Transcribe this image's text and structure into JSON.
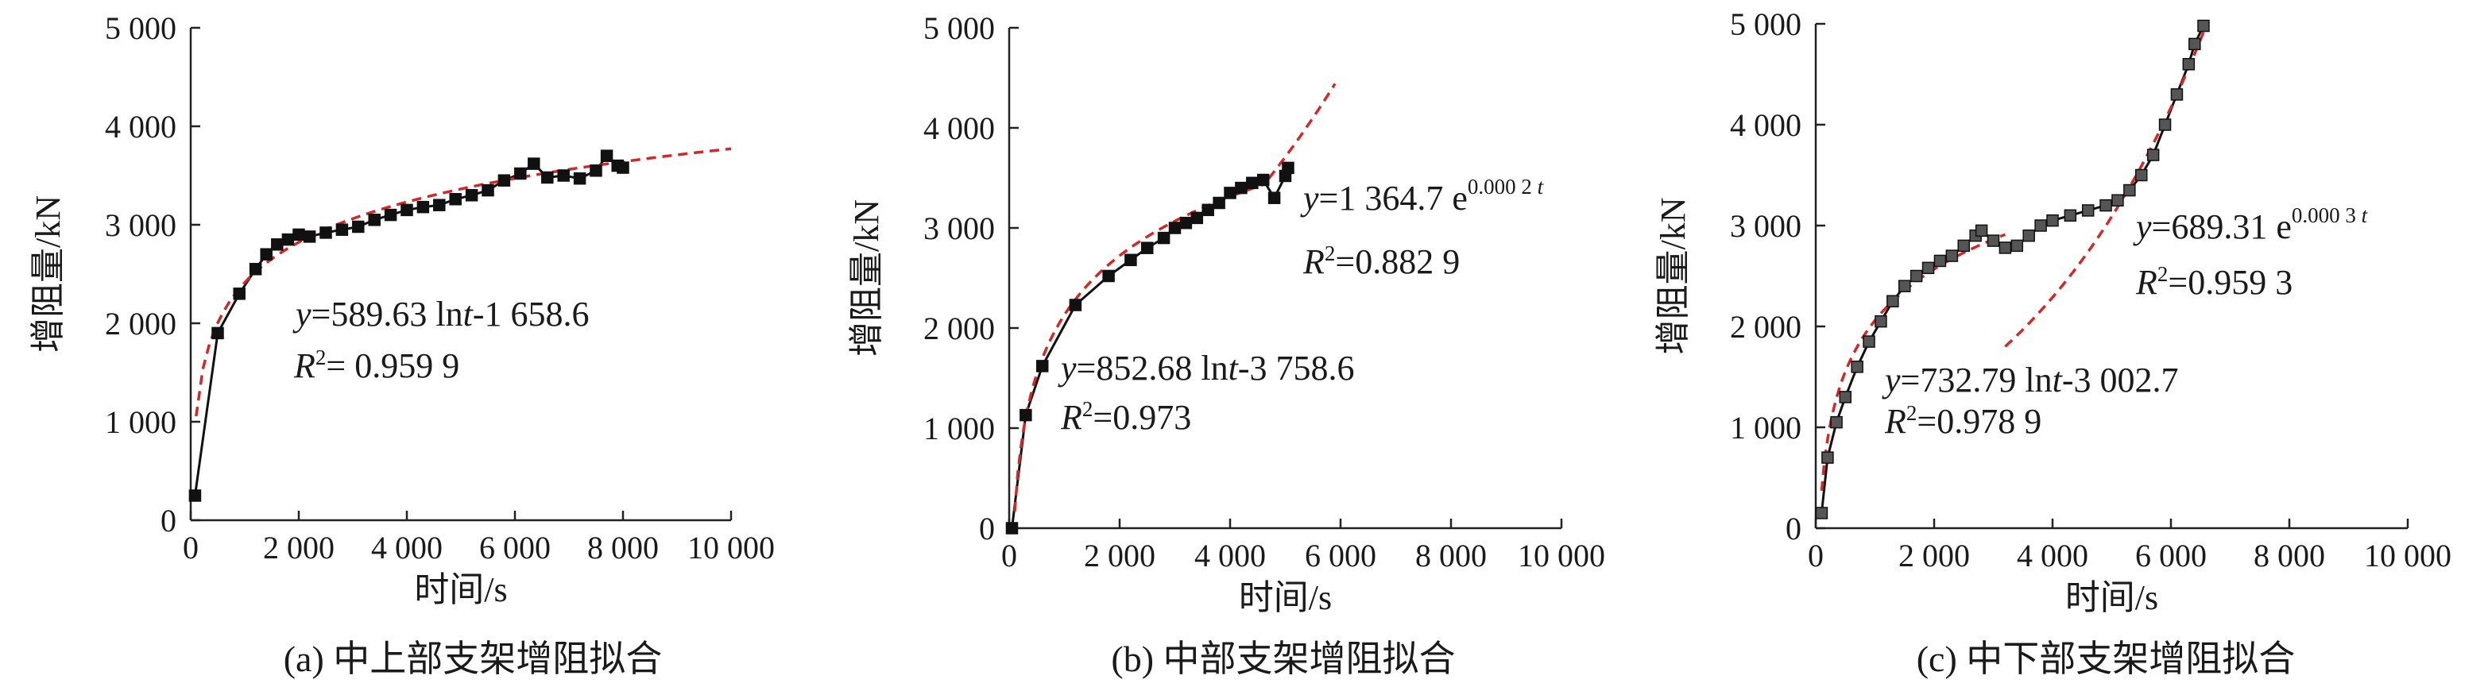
{
  "charts": [
    {
      "type": "scatter",
      "panel_caption": "(a) 中上部支架增阻拟合",
      "xlabel": "时间/s",
      "ylabel": "增阻量/kN",
      "xlim": [
        0,
        10000
      ],
      "ylim": [
        0,
        5000
      ],
      "x_ticks": [
        0,
        2000,
        4000,
        6000,
        8000,
        10000
      ],
      "x_tick_labels": [
        "0",
        "2 000",
        "4 000",
        "6 000",
        "8 000",
        "10 000"
      ],
      "y_ticks": [
        0,
        1000,
        2000,
        3000,
        4000,
        5000
      ],
      "y_tick_labels": [
        "0",
        "1 000",
        "2 000",
        "3 000",
        "4 000",
        "5 000"
      ],
      "fit": {
        "model": "log",
        "a": 589.63,
        "b": -1658.6,
        "x_range": [
          100,
          10000
        ]
      },
      "equation": {
        "y_label": "y",
        "body": "=589.63 ln",
        "var": "t",
        "tail": "-1 658.6",
        "r2_label": "R",
        "r2_value": "= 0.959 9"
      },
      "points": [
        [
          80,
          250
        ],
        [
          500,
          1900
        ],
        [
          900,
          2300
        ],
        [
          1200,
          2550
        ],
        [
          1400,
          2700
        ],
        [
          1600,
          2800
        ],
        [
          1800,
          2850
        ],
        [
          2000,
          2900
        ],
        [
          2200,
          2880
        ],
        [
          2500,
          2920
        ],
        [
          2800,
          2950
        ],
        [
          3100,
          2980
        ],
        [
          3400,
          3050
        ],
        [
          3700,
          3100
        ],
        [
          4000,
          3150
        ],
        [
          4300,
          3180
        ],
        [
          4600,
          3200
        ],
        [
          4900,
          3260
        ],
        [
          5200,
          3300
        ],
        [
          5500,
          3350
        ],
        [
          5800,
          3450
        ],
        [
          6100,
          3520
        ],
        [
          6350,
          3620
        ],
        [
          6600,
          3480
        ],
        [
          6900,
          3500
        ],
        [
          7200,
          3470
        ],
        [
          7500,
          3550
        ],
        [
          7700,
          3700
        ],
        [
          7900,
          3600
        ],
        [
          8000,
          3580
        ]
      ]
    },
    {
      "type": "scatter",
      "panel_caption": "(b) 中部支架增阻拟合",
      "xlabel": "时间/s",
      "ylabel": "增阻量/kN",
      "xlim": [
        0,
        10000
      ],
      "ylim": [
        0,
        5000
      ],
      "x_ticks": [
        0,
        2000,
        4000,
        6000,
        8000,
        10000
      ],
      "x_tick_labels": [
        "0",
        "2 000",
        "4 000",
        "6 000",
        "8 000",
        "10 000"
      ],
      "y_ticks": [
        0,
        1000,
        2000,
        3000,
        4000,
        5000
      ],
      "y_tick_labels": [
        "0",
        "1 000",
        "2 000",
        "3 000",
        "4 000",
        "5 000"
      ],
      "fits": [
        {
          "model": "log",
          "a": 852.68,
          "b": -3758.6,
          "x_range": [
            100,
            4700
          ]
        },
        {
          "model": "exp",
          "a": 1364.7,
          "b": 0.0002,
          "x_range": [
            4700,
            5900
          ]
        }
      ],
      "equation_log": {
        "y_label": "y",
        "body": "=852.68 ln",
        "var": "t",
        "tail": "-3 758.6",
        "r2_label": "R",
        "r2_value": "=0.973"
      },
      "equation_exp": {
        "y_label": "y",
        "body": "=1 364.7 e",
        "exponent": "0.000 2",
        "exp_var": "t",
        "r2_label": "R",
        "r2_value": "=0.882 9"
      },
      "points": [
        [
          50,
          0
        ],
        [
          300,
          1130
        ],
        [
          600,
          1620
        ],
        [
          1200,
          2230
        ],
        [
          1800,
          2520
        ],
        [
          2200,
          2680
        ],
        [
          2500,
          2800
        ],
        [
          2800,
          2900
        ],
        [
          3000,
          3000
        ],
        [
          3200,
          3050
        ],
        [
          3400,
          3100
        ],
        [
          3600,
          3180
        ],
        [
          3800,
          3250
        ],
        [
          4000,
          3350
        ],
        [
          4200,
          3400
        ],
        [
          4400,
          3450
        ],
        [
          4600,
          3480
        ],
        [
          4800,
          3300
        ],
        [
          5000,
          3520
        ],
        [
          5050,
          3600
        ]
      ]
    },
    {
      "type": "scatter",
      "panel_caption": "(c) 中下部支架增阻拟合",
      "xlabel": "时间/s",
      "ylabel": "增阻量/kN",
      "xlim": [
        0,
        10000
      ],
      "ylim": [
        0,
        5000
      ],
      "x_ticks": [
        0,
        2000,
        4000,
        6000,
        8000,
        10000
      ],
      "x_tick_labels": [
        "0",
        "2 000",
        "4 000",
        "6 000",
        "8 000",
        "10 000"
      ],
      "y_ticks": [
        0,
        1000,
        2000,
        3000,
        4000,
        5000
      ],
      "y_tick_labels": [
        "0",
        "1 000",
        "2 000",
        "3 000",
        "4 000",
        "5 000"
      ],
      "fits": [
        {
          "model": "log",
          "a": 732.79,
          "b": -3002.7,
          "x_range": [
            100,
            3200
          ]
        },
        {
          "model": "exp",
          "a": 689.31,
          "b": 0.0003,
          "x_range": [
            3200,
            6600
          ]
        }
      ],
      "equation_log": {
        "y_label": "y",
        "body": "=732.79 ln",
        "var": "t",
        "tail": "-3 002.7",
        "r2_label": "R",
        "r2_value": "=0.978 9"
      },
      "equation_exp": {
        "y_label": "y",
        "body": "=689.31 e",
        "exponent": "0.000 3",
        "exp_var": "t",
        "r2_label": "R",
        "r2_value": "=0.959 3"
      },
      "points": [
        [
          100,
          150
        ],
        [
          200,
          700
        ],
        [
          350,
          1050
        ],
        [
          500,
          1300
        ],
        [
          700,
          1600
        ],
        [
          900,
          1850
        ],
        [
          1100,
          2050
        ],
        [
          1300,
          2250
        ],
        [
          1500,
          2400
        ],
        [
          1700,
          2500
        ],
        [
          1900,
          2580
        ],
        [
          2100,
          2650
        ],
        [
          2300,
          2700
        ],
        [
          2500,
          2800
        ],
        [
          2700,
          2900
        ],
        [
          2800,
          2950
        ],
        [
          3000,
          2850
        ],
        [
          3200,
          2780
        ],
        [
          3400,
          2800
        ],
        [
          3600,
          2900
        ],
        [
          3800,
          3000
        ],
        [
          4000,
          3050
        ],
        [
          4300,
          3100
        ],
        [
          4600,
          3150
        ],
        [
          4900,
          3200
        ],
        [
          5100,
          3250
        ],
        [
          5300,
          3350
        ],
        [
          5500,
          3500
        ],
        [
          5700,
          3700
        ],
        [
          5900,
          4000
        ],
        [
          6100,
          4300
        ],
        [
          6300,
          4600
        ],
        [
          6400,
          4800
        ],
        [
          6550,
          4980
        ]
      ]
    }
  ]
}
